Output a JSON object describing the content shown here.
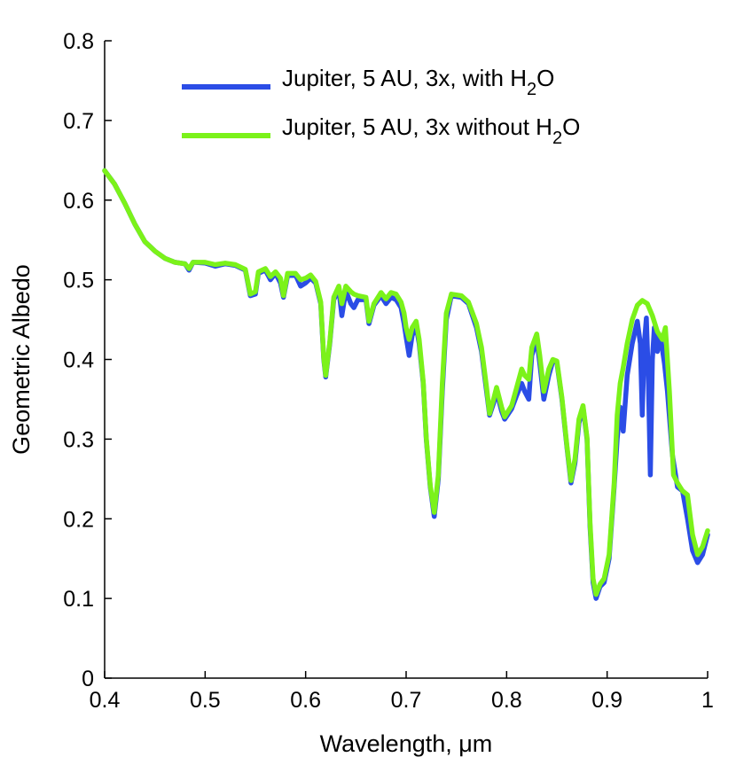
{
  "chart_data": {
    "type": "line",
    "title": "",
    "xlabel": "Wavelength, μm",
    "ylabel": "Geometric Albedo",
    "xlim": [
      0.4,
      1.0
    ],
    "ylim": [
      0,
      0.8
    ],
    "xticks": [
      0.4,
      0.5,
      0.6,
      0.7,
      0.8,
      0.9,
      1.0
    ],
    "xtick_labels": [
      "0.4",
      "0.5",
      "0.6",
      "0.7",
      "0.8",
      "0.9",
      "1"
    ],
    "yticks": [
      0,
      0.1,
      0.2,
      0.3,
      0.4,
      0.5,
      0.6,
      0.7,
      0.8
    ],
    "ytick_labels": [
      "0",
      "0.1",
      "0.2",
      "0.3",
      "0.4",
      "0.5",
      "0.6",
      "0.7",
      "0.8"
    ],
    "grid": false,
    "legend_position": "top-right",
    "series": [
      {
        "name": "Jupiter, 5 AU, 3x, with H2O",
        "legend_main": "Jupiter, 5 AU, 3x, with H",
        "legend_sub": "2",
        "legend_tail": "O",
        "color": "#2b4de6",
        "points": [
          [
            0.4,
            0.637
          ],
          [
            0.41,
            0.62
          ],
          [
            0.42,
            0.596
          ],
          [
            0.43,
            0.57
          ],
          [
            0.44,
            0.548
          ],
          [
            0.45,
            0.536
          ],
          [
            0.46,
            0.527
          ],
          [
            0.47,
            0.522
          ],
          [
            0.48,
            0.52
          ],
          [
            0.484,
            0.512
          ],
          [
            0.488,
            0.522
          ],
          [
            0.5,
            0.521
          ],
          [
            0.51,
            0.517
          ],
          [
            0.52,
            0.52
          ],
          [
            0.53,
            0.518
          ],
          [
            0.54,
            0.512
          ],
          [
            0.545,
            0.48
          ],
          [
            0.55,
            0.482
          ],
          [
            0.553,
            0.508
          ],
          [
            0.56,
            0.512
          ],
          [
            0.565,
            0.5
          ],
          [
            0.57,
            0.508
          ],
          [
            0.575,
            0.496
          ],
          [
            0.578,
            0.478
          ],
          [
            0.582,
            0.505
          ],
          [
            0.59,
            0.506
          ],
          [
            0.595,
            0.492
          ],
          [
            0.6,
            0.496
          ],
          [
            0.605,
            0.502
          ],
          [
            0.61,
            0.496
          ],
          [
            0.615,
            0.47
          ],
          [
            0.618,
            0.4
          ],
          [
            0.62,
            0.378
          ],
          [
            0.624,
            0.42
          ],
          [
            0.628,
            0.475
          ],
          [
            0.633,
            0.488
          ],
          [
            0.636,
            0.455
          ],
          [
            0.64,
            0.486
          ],
          [
            0.645,
            0.47
          ],
          [
            0.648,
            0.465
          ],
          [
            0.652,
            0.475
          ],
          [
            0.66,
            0.475
          ],
          [
            0.663,
            0.445
          ],
          [
            0.668,
            0.468
          ],
          [
            0.675,
            0.48
          ],
          [
            0.68,
            0.47
          ],
          [
            0.685,
            0.478
          ],
          [
            0.69,
            0.475
          ],
          [
            0.695,
            0.465
          ],
          [
            0.698,
            0.445
          ],
          [
            0.7,
            0.428
          ],
          [
            0.703,
            0.405
          ],
          [
            0.706,
            0.43
          ],
          [
            0.71,
            0.442
          ],
          [
            0.713,
            0.42
          ],
          [
            0.717,
            0.37
          ],
          [
            0.72,
            0.3
          ],
          [
            0.724,
            0.24
          ],
          [
            0.728,
            0.203
          ],
          [
            0.732,
            0.25
          ],
          [
            0.736,
            0.36
          ],
          [
            0.74,
            0.45
          ],
          [
            0.745,
            0.48
          ],
          [
            0.755,
            0.478
          ],
          [
            0.762,
            0.47
          ],
          [
            0.77,
            0.44
          ],
          [
            0.775,
            0.41
          ],
          [
            0.78,
            0.36
          ],
          [
            0.783,
            0.33
          ],
          [
            0.787,
            0.345
          ],
          [
            0.79,
            0.36
          ],
          [
            0.795,
            0.335
          ],
          [
            0.798,
            0.325
          ],
          [
            0.805,
            0.338
          ],
          [
            0.81,
            0.355
          ],
          [
            0.815,
            0.37
          ],
          [
            0.818,
            0.36
          ],
          [
            0.822,
            0.35
          ],
          [
            0.825,
            0.405
          ],
          [
            0.83,
            0.425
          ],
          [
            0.833,
            0.395
          ],
          [
            0.837,
            0.35
          ],
          [
            0.842,
            0.38
          ],
          [
            0.846,
            0.398
          ],
          [
            0.85,
            0.396
          ],
          [
            0.855,
            0.35
          ],
          [
            0.86,
            0.29
          ],
          [
            0.864,
            0.245
          ],
          [
            0.868,
            0.27
          ],
          [
            0.872,
            0.32
          ],
          [
            0.876,
            0.34
          ],
          [
            0.88,
            0.3
          ],
          [
            0.883,
            0.19
          ],
          [
            0.886,
            0.12
          ],
          [
            0.889,
            0.1
          ],
          [
            0.893,
            0.115
          ],
          [
            0.897,
            0.12
          ],
          [
            0.902,
            0.15
          ],
          [
            0.907,
            0.24
          ],
          [
            0.91,
            0.3
          ],
          [
            0.913,
            0.34
          ],
          [
            0.916,
            0.31
          ],
          [
            0.92,
            0.38
          ],
          [
            0.925,
            0.42
          ],
          [
            0.93,
            0.448
          ],
          [
            0.933,
            0.42
          ],
          [
            0.935,
            0.33
          ],
          [
            0.937,
            0.42
          ],
          [
            0.939,
            0.452
          ],
          [
            0.941,
            0.38
          ],
          [
            0.943,
            0.255
          ],
          [
            0.945,
            0.4
          ],
          [
            0.947,
            0.44
          ],
          [
            0.95,
            0.41
          ],
          [
            0.953,
            0.43
          ],
          [
            0.957,
            0.395
          ],
          [
            0.96,
            0.36
          ],
          [
            0.965,
            0.28
          ],
          [
            0.97,
            0.24
          ],
          [
            0.975,
            0.235
          ],
          [
            0.98,
            0.2
          ],
          [
            0.985,
            0.16
          ],
          [
            0.99,
            0.145
          ],
          [
            0.995,
            0.155
          ],
          [
            1.0,
            0.18
          ]
        ]
      },
      {
        "name": "Jupiter, 5 AU, 3x without H2O",
        "legend_main": "Jupiter, 5 AU, 3x without H",
        "legend_sub": "2",
        "legend_tail": "O",
        "color": "#7bf21a",
        "points": [
          [
            0.4,
            0.637
          ],
          [
            0.41,
            0.62
          ],
          [
            0.42,
            0.596
          ],
          [
            0.43,
            0.57
          ],
          [
            0.44,
            0.548
          ],
          [
            0.45,
            0.536
          ],
          [
            0.46,
            0.527
          ],
          [
            0.47,
            0.522
          ],
          [
            0.48,
            0.52
          ],
          [
            0.484,
            0.514
          ],
          [
            0.488,
            0.522
          ],
          [
            0.5,
            0.522
          ],
          [
            0.51,
            0.519
          ],
          [
            0.52,
            0.521
          ],
          [
            0.53,
            0.519
          ],
          [
            0.54,
            0.513
          ],
          [
            0.545,
            0.482
          ],
          [
            0.55,
            0.485
          ],
          [
            0.553,
            0.51
          ],
          [
            0.56,
            0.514
          ],
          [
            0.565,
            0.504
          ],
          [
            0.57,
            0.51
          ],
          [
            0.575,
            0.502
          ],
          [
            0.578,
            0.48
          ],
          [
            0.582,
            0.508
          ],
          [
            0.59,
            0.508
          ],
          [
            0.595,
            0.5
          ],
          [
            0.6,
            0.502
          ],
          [
            0.605,
            0.506
          ],
          [
            0.61,
            0.498
          ],
          [
            0.615,
            0.472
          ],
          [
            0.618,
            0.402
          ],
          [
            0.62,
            0.38
          ],
          [
            0.624,
            0.422
          ],
          [
            0.628,
            0.478
          ],
          [
            0.633,
            0.492
          ],
          [
            0.636,
            0.47
          ],
          [
            0.64,
            0.492
          ],
          [
            0.645,
            0.485
          ],
          [
            0.648,
            0.482
          ],
          [
            0.652,
            0.48
          ],
          [
            0.66,
            0.478
          ],
          [
            0.663,
            0.448
          ],
          [
            0.668,
            0.47
          ],
          [
            0.675,
            0.484
          ],
          [
            0.68,
            0.476
          ],
          [
            0.685,
            0.484
          ],
          [
            0.69,
            0.482
          ],
          [
            0.695,
            0.472
          ],
          [
            0.698,
            0.458
          ],
          [
            0.7,
            0.44
          ],
          [
            0.703,
            0.425
          ],
          [
            0.706,
            0.44
          ],
          [
            0.71,
            0.448
          ],
          [
            0.713,
            0.425
          ],
          [
            0.717,
            0.372
          ],
          [
            0.72,
            0.302
          ],
          [
            0.724,
            0.242
          ],
          [
            0.728,
            0.208
          ],
          [
            0.732,
            0.255
          ],
          [
            0.736,
            0.37
          ],
          [
            0.74,
            0.458
          ],
          [
            0.745,
            0.482
          ],
          [
            0.755,
            0.48
          ],
          [
            0.762,
            0.472
          ],
          [
            0.77,
            0.445
          ],
          [
            0.775,
            0.415
          ],
          [
            0.78,
            0.365
          ],
          [
            0.783,
            0.332
          ],
          [
            0.787,
            0.35
          ],
          [
            0.79,
            0.365
          ],
          [
            0.795,
            0.34
          ],
          [
            0.798,
            0.328
          ],
          [
            0.805,
            0.342
          ],
          [
            0.81,
            0.365
          ],
          [
            0.815,
            0.388
          ],
          [
            0.818,
            0.38
          ],
          [
            0.822,
            0.375
          ],
          [
            0.825,
            0.415
          ],
          [
            0.83,
            0.432
          ],
          [
            0.833,
            0.405
          ],
          [
            0.837,
            0.36
          ],
          [
            0.842,
            0.388
          ],
          [
            0.846,
            0.4
          ],
          [
            0.85,
            0.398
          ],
          [
            0.855,
            0.352
          ],
          [
            0.86,
            0.292
          ],
          [
            0.864,
            0.248
          ],
          [
            0.868,
            0.275
          ],
          [
            0.872,
            0.325
          ],
          [
            0.876,
            0.342
          ],
          [
            0.88,
            0.302
          ],
          [
            0.883,
            0.195
          ],
          [
            0.886,
            0.125
          ],
          [
            0.889,
            0.105
          ],
          [
            0.893,
            0.118
          ],
          [
            0.897,
            0.125
          ],
          [
            0.902,
            0.155
          ],
          [
            0.907,
            0.245
          ],
          [
            0.91,
            0.33
          ],
          [
            0.913,
            0.37
          ],
          [
            0.916,
            0.39
          ],
          [
            0.92,
            0.42
          ],
          [
            0.925,
            0.45
          ],
          [
            0.93,
            0.468
          ],
          [
            0.935,
            0.474
          ],
          [
            0.94,
            0.47
          ],
          [
            0.945,
            0.455
          ],
          [
            0.95,
            0.435
          ],
          [
            0.955,
            0.425
          ],
          [
            0.958,
            0.44
          ],
          [
            0.962,
            0.36
          ],
          [
            0.966,
            0.255
          ],
          [
            0.97,
            0.245
          ],
          [
            0.975,
            0.235
          ],
          [
            0.98,
            0.23
          ],
          [
            0.985,
            0.18
          ],
          [
            0.99,
            0.155
          ],
          [
            0.995,
            0.165
          ],
          [
            1.0,
            0.185
          ]
        ]
      }
    ]
  }
}
